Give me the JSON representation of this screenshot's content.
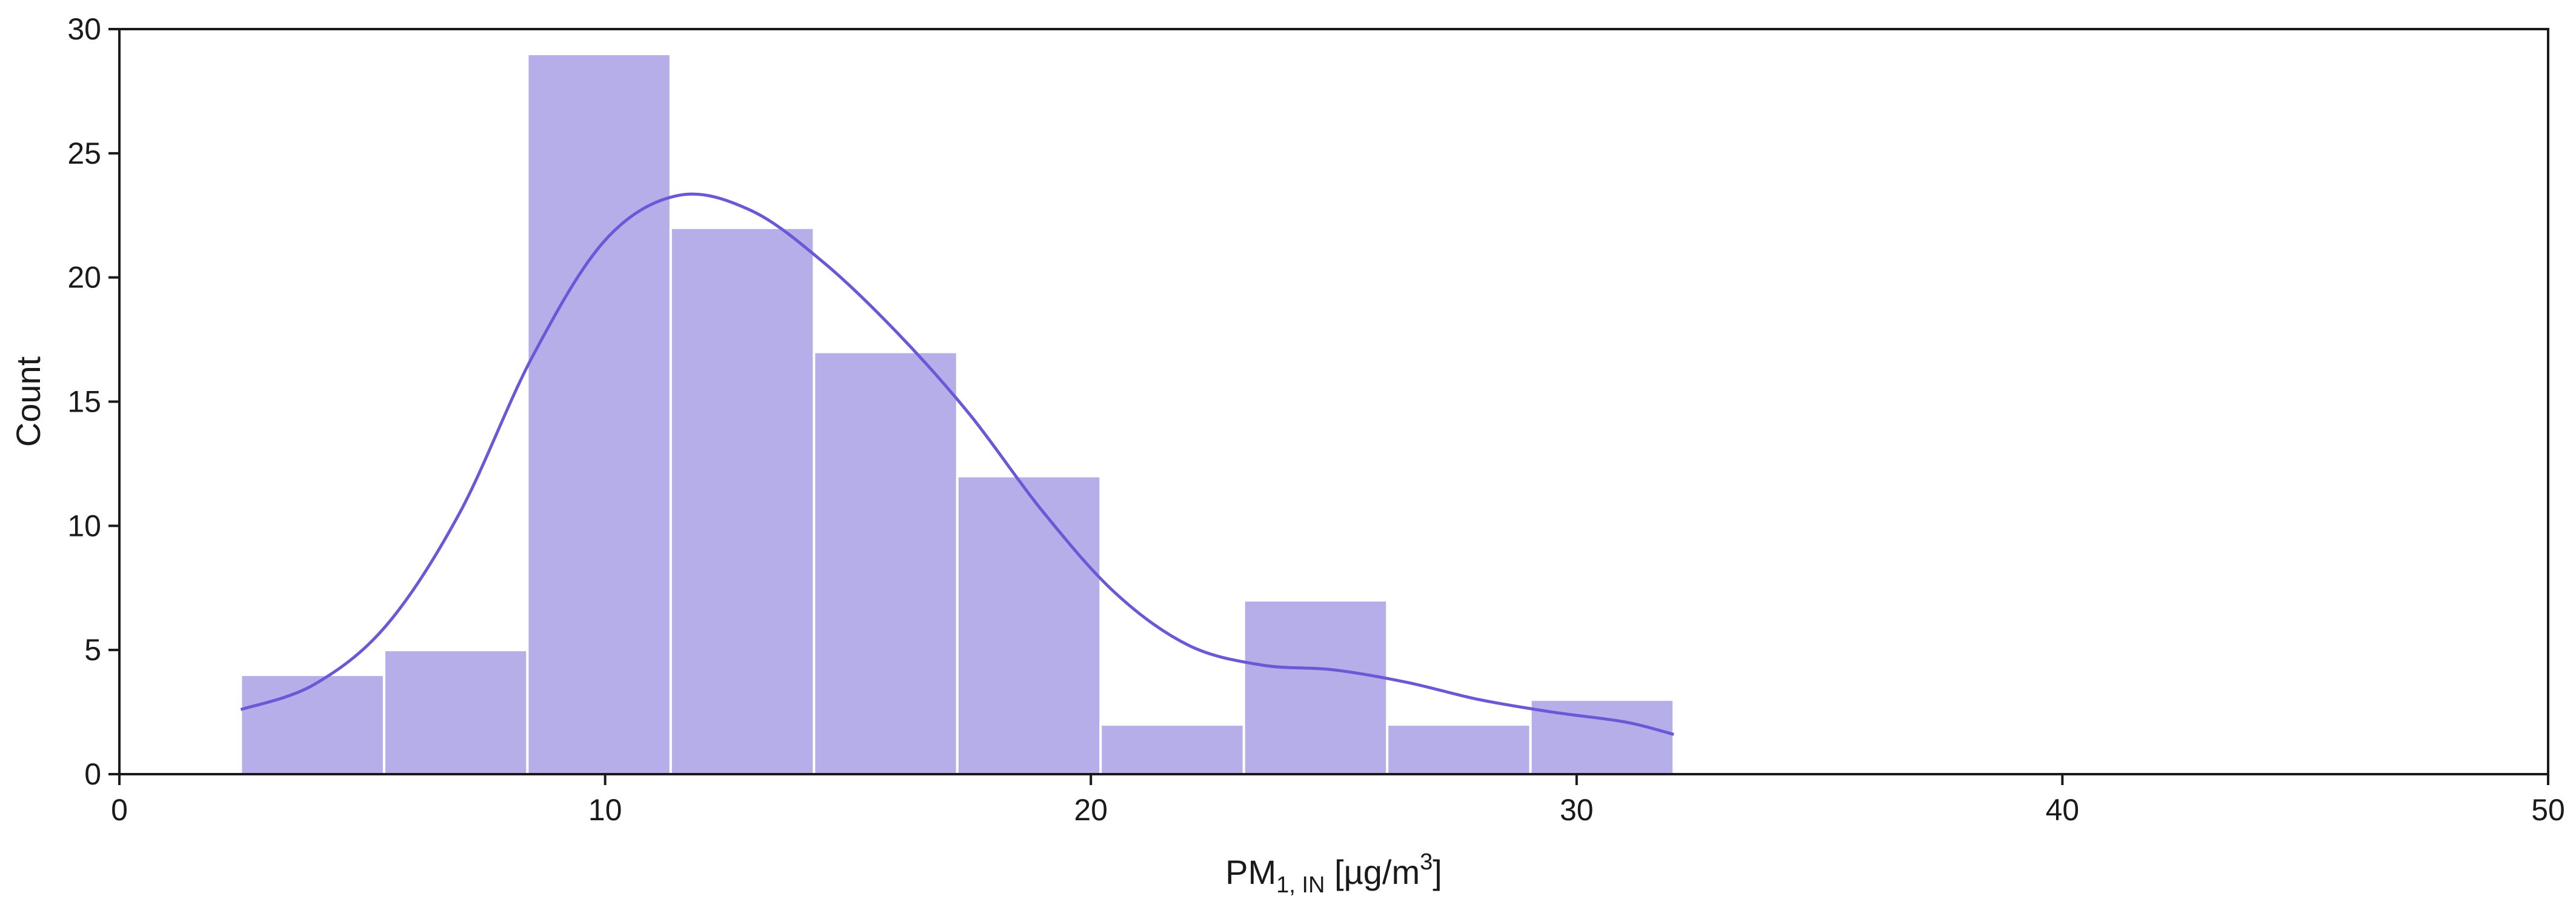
{
  "chart_data": {
    "type": "bar",
    "subtype": "histogram-with-kde",
    "title": "",
    "xlabel": {
      "base": "PM",
      "subscript": "1, IN",
      "unit_prefix": " [µg/m",
      "superscript": "3",
      "unit_suffix": "]"
    },
    "ylabel": "Count",
    "xlim": [
      0,
      50
    ],
    "ylim": [
      0,
      30
    ],
    "xticks": [
      0,
      10,
      20,
      30,
      40,
      50
    ],
    "yticks": [
      0,
      5,
      10,
      15,
      20,
      25,
      30
    ],
    "xtick_labels": [
      "0",
      "10",
      "20",
      "30",
      "40",
      "50"
    ],
    "ytick_labels": [
      "0",
      "5",
      "10",
      "15",
      "20",
      "25",
      "30"
    ],
    "bin_edges": [
      2.5,
      5.45,
      8.4,
      11.35,
      14.3,
      17.25,
      20.2,
      23.15,
      26.1,
      29.05,
      32.0
    ],
    "counts": [
      4,
      5,
      29,
      22,
      17,
      12,
      2,
      7,
      2,
      3
    ],
    "kde": {
      "x": [
        2.5,
        4,
        5.5,
        7,
        8.5,
        10,
        11.5,
        13,
        14.5,
        16,
        17.5,
        19,
        20.5,
        22,
        23.5,
        25,
        26.5,
        28,
        29.5,
        31,
        32.0
      ],
      "y": [
        2.6,
        3.6,
        6.0,
        10.5,
        16.8,
        21.5,
        23.3,
        22.7,
        20.6,
        17.8,
        14.5,
        10.6,
        7.3,
        5.2,
        4.4,
        4.2,
        3.7,
        3.0,
        2.5,
        2.1,
        1.6
      ]
    },
    "grid": false,
    "legend": "none",
    "colors": {
      "bar_fill": "#b5aee8",
      "bar_edge": "#ffffff",
      "kde_line": "#6a58d6",
      "axis": "#1a1a1a"
    }
  }
}
